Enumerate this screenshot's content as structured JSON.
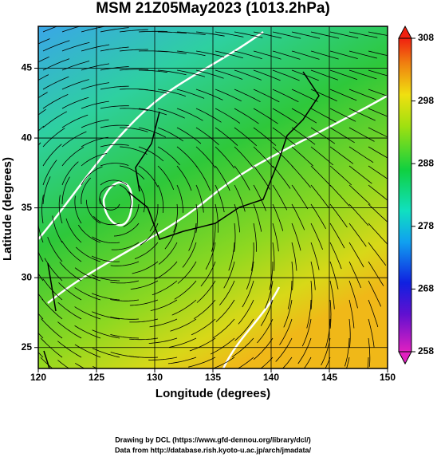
{
  "title": "MSM 21Z05May2023 (1013.2hPa)",
  "map": {
    "xlabel": "Longitude (degrees)",
    "ylabel": "Latitude  (degrees)",
    "xlim": [
      120,
      150
    ],
    "ylim": [
      23.5,
      48
    ],
    "xticks": [
      120,
      125,
      130,
      135,
      140,
      145,
      150
    ],
    "yticks": [
      25,
      30,
      35,
      40,
      45
    ]
  },
  "colorbar": {
    "lim": [
      258,
      308
    ],
    "ticks": [
      258,
      268,
      278,
      288,
      298,
      308
    ]
  },
  "credits": [
    "Drawing by DCL (https://www.gfd-dennou.org/library/dcl/)",
    "Data from http://database.rish.kyoto-u.ac.jp/arch/jmadata/"
  ]
}
